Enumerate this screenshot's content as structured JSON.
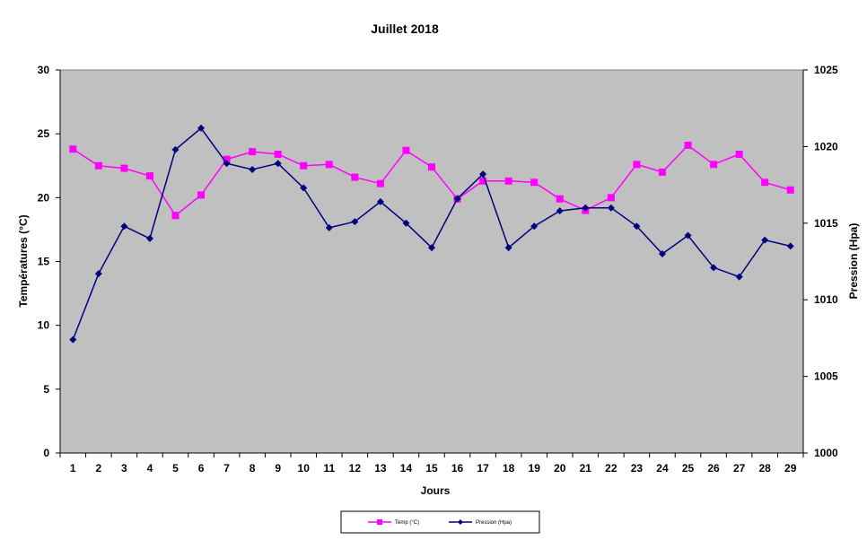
{
  "chart_data": {
    "type": "line",
    "title": "Juillet 2018",
    "xlabel": "Jours",
    "ylabel_left": "Températures (°C)",
    "ylabel_right": "Pression (Hpa)",
    "categories": [
      "1",
      "2",
      "3",
      "4",
      "5",
      "6",
      "7",
      "8",
      "9",
      "10",
      "11",
      "12",
      "13",
      "14",
      "15",
      "16",
      "17",
      "18",
      "19",
      "20",
      "21",
      "22",
      "23",
      "24",
      "25",
      "26",
      "27",
      "28",
      "29"
    ],
    "y_left_range": [
      0,
      30
    ],
    "y_left_ticks": [
      "0",
      "5",
      "10",
      "15",
      "20",
      "25",
      "30"
    ],
    "y_right_range": [
      1000,
      1025
    ],
    "y_right_ticks": [
      "1000",
      "1005",
      "1010",
      "1015",
      "1020",
      "1025"
    ],
    "grid": false,
    "legend_position": "bottom",
    "series": [
      {
        "name": "Temp (°C)",
        "axis": "left",
        "color": "#ff00ff",
        "marker": "square",
        "values": [
          23.8,
          22.5,
          22.3,
          21.7,
          18.6,
          20.2,
          23.0,
          23.6,
          23.4,
          22.5,
          22.6,
          21.6,
          21.1,
          23.7,
          22.4,
          19.9,
          21.3,
          21.3,
          21.2,
          19.9,
          19.0,
          20.0,
          22.6,
          22.0,
          24.1,
          22.6,
          23.4,
          21.2,
          20.6
        ]
      },
      {
        "name": "Pression (Hpa)",
        "axis": "right",
        "color": "#000080",
        "marker": "diamond",
        "values": [
          1007.4,
          1011.7,
          1014.8,
          1014.0,
          1019.8,
          1021.2,
          1018.9,
          1018.5,
          1018.9,
          1017.3,
          1014.7,
          1015.1,
          1016.4,
          1015.0,
          1013.4,
          1016.6,
          1018.2,
          1013.4,
          1014.8,
          1015.8,
          1016.0,
          1016.0,
          1014.8,
          1013.0,
          1014.2,
          1012.1,
          1011.5,
          1013.9,
          1013.5
        ]
      }
    ],
    "colors": {
      "plot_background": "#c0c0c0"
    }
  }
}
